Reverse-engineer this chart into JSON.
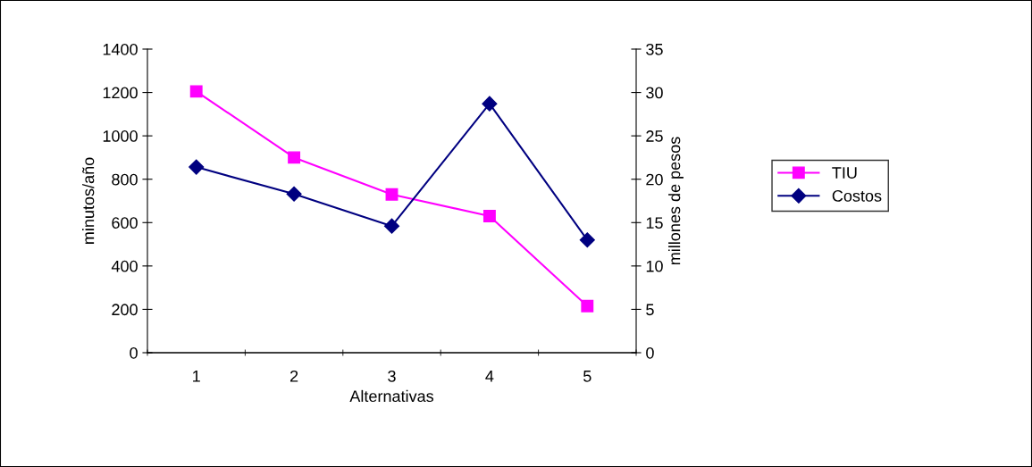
{
  "chart_data": {
    "type": "line",
    "xlabel": "Alternativas",
    "ylabel": "minutos/año",
    "y2label": "millones de pesos",
    "categories": [
      "1",
      "2",
      "3",
      "4",
      "5"
    ],
    "series": [
      {
        "name": "TIU",
        "color": "#ff00ff",
        "marker": "square",
        "values": [
          1205,
          900,
          730,
          630,
          215
        ]
      },
      {
        "name": "Costos",
        "color": "#000080",
        "marker": "diamond",
        "axis": "y2",
        "values": [
          21.4,
          18.3,
          14.6,
          28.7,
          13.0
        ]
      }
    ],
    "ylim": [
      0,
      1400
    ],
    "yticks": [
      0,
      200,
      400,
      600,
      800,
      1000,
      1200,
      1400
    ],
    "y2lim": [
      0,
      35
    ],
    "y2ticks": [
      0,
      5,
      10,
      15,
      20,
      25,
      30,
      35
    ],
    "grid": false,
    "legend": "right",
    "line_style": "solid"
  }
}
